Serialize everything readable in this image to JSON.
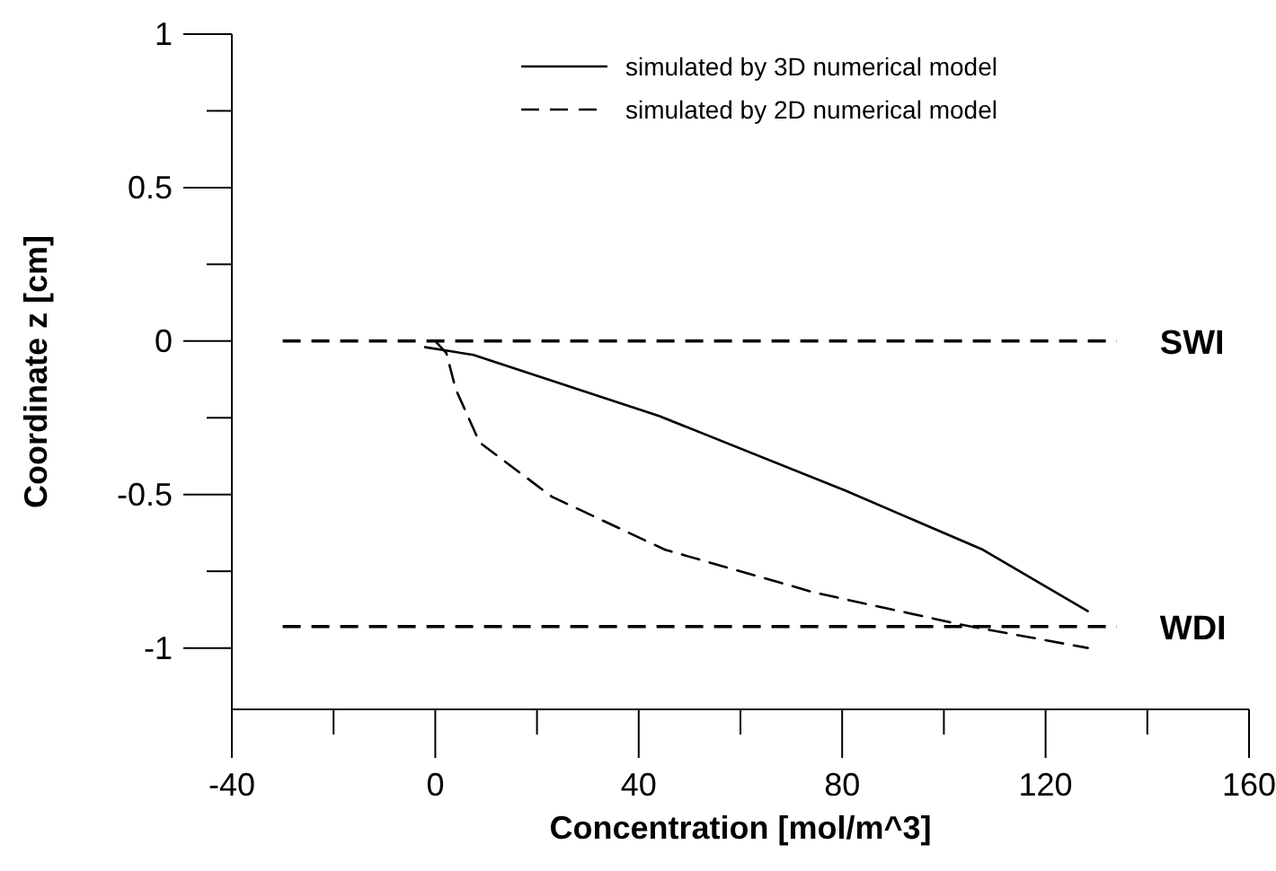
{
  "chart_data": {
    "type": "line",
    "xlabel": "Concentration [mol/m^3]",
    "ylabel": "Coordinate z [cm]",
    "xlim": [
      -40,
      160
    ],
    "xticks": [
      -40,
      {
        "value": -20,
        "label": null
      },
      0,
      {
        "value": 20,
        "label": null
      },
      40,
      {
        "value": 60,
        "label": null
      },
      80,
      {
        "value": 100,
        "label": null
      },
      120,
      {
        "value": 140,
        "label": null
      },
      160
    ],
    "ylim": [
      -1.2,
      1
    ],
    "yticks": [
      {
        "value": -0.75,
        "label": null
      },
      -1,
      -0.5,
      {
        "value": -0.25,
        "label": null
      },
      0,
      {
        "value": 0.25,
        "label": null
      },
      0.5,
      {
        "value": 0.75,
        "label": null
      },
      1
    ],
    "series": [
      {
        "name": "simulated by 3D numerical model",
        "color": "#000000",
        "line_style": "solid",
        "x": [
          -2,
          7.5,
          44,
          80.6,
          107.7,
          128.3
        ],
        "values": [
          -0.02,
          -0.045,
          -0.244,
          -0.487,
          -0.68,
          -0.88
        ]
      },
      {
        "name": "simulated by 2D numerical model",
        "color": "#000000",
        "line_style": "dashed",
        "x": [
          0,
          2.2,
          4,
          8.7,
          22.9,
          45.2,
          74.7,
          104,
          128.3
        ],
        "values": [
          0,
          -0.04,
          -0.156,
          -0.33,
          -0.507,
          -0.68,
          -0.82,
          -0.926,
          -1.0
        ]
      }
    ],
    "ref_lines": [
      {
        "axis": "y",
        "value": 0,
        "label": "SWI",
        "color": "#000000",
        "line_style": "dashed"
      },
      {
        "axis": "y",
        "value": -0.93,
        "label": "WDI",
        "color": "#000000",
        "line_style": "dashed"
      }
    ],
    "legend": "top right",
    "grid": false
  }
}
